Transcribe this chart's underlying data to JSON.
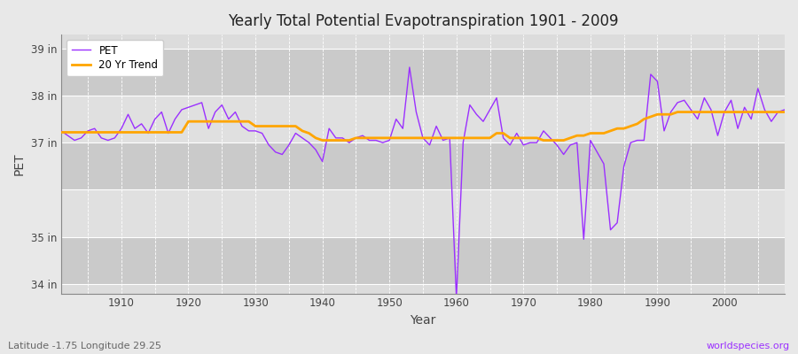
{
  "title": "Yearly Total Potential Evapotranspiration 1901 - 2009",
  "xlabel": "Year",
  "ylabel": "PET",
  "pet_color": "#9B30FF",
  "trend_color": "#FFA500",
  "background_color": "#E8E8E8",
  "plot_bg_color": "#DCDCDC",
  "grid_color": "#BBBBBB",
  "subtitle": "Latitude -1.75 Longitude 29.25",
  "watermark": "worldspecies.org",
  "ylim": [
    33.8,
    39.3
  ],
  "xlim": [
    1901,
    2009
  ],
  "years": [
    1901,
    1902,
    1903,
    1904,
    1905,
    1906,
    1907,
    1908,
    1909,
    1910,
    1911,
    1912,
    1913,
    1914,
    1915,
    1916,
    1917,
    1918,
    1919,
    1920,
    1921,
    1922,
    1923,
    1924,
    1925,
    1926,
    1927,
    1928,
    1929,
    1930,
    1931,
    1932,
    1933,
    1934,
    1935,
    1936,
    1937,
    1938,
    1939,
    1940,
    1941,
    1942,
    1943,
    1944,
    1945,
    1946,
    1947,
    1948,
    1949,
    1950,
    1951,
    1952,
    1953,
    1954,
    1955,
    1956,
    1957,
    1958,
    1959,
    1960,
    1961,
    1962,
    1963,
    1964,
    1965,
    1966,
    1967,
    1968,
    1969,
    1970,
    1971,
    1972,
    1973,
    1974,
    1975,
    1976,
    1977,
    1978,
    1979,
    1980,
    1981,
    1982,
    1983,
    1984,
    1985,
    1986,
    1987,
    1988,
    1989,
    1990,
    1991,
    1992,
    1993,
    1994,
    1995,
    1996,
    1997,
    1998,
    1999,
    2000,
    2001,
    2002,
    2003,
    2004,
    2005,
    2006,
    2007,
    2008,
    2009
  ],
  "pet_values": [
    37.25,
    37.15,
    37.05,
    37.1,
    37.25,
    37.3,
    37.1,
    37.05,
    37.1,
    37.3,
    37.6,
    37.3,
    37.4,
    37.2,
    37.5,
    37.65,
    37.2,
    37.5,
    37.7,
    37.75,
    37.8,
    37.85,
    37.3,
    37.65,
    37.8,
    37.5,
    37.65,
    37.35,
    37.25,
    37.25,
    37.2,
    36.95,
    36.8,
    36.75,
    36.95,
    37.2,
    37.1,
    37.0,
    36.85,
    36.6,
    37.3,
    37.1,
    37.1,
    37.0,
    37.1,
    37.15,
    37.05,
    37.05,
    37.0,
    37.05,
    37.5,
    37.3,
    38.6,
    37.65,
    37.1,
    36.95,
    37.35,
    37.05,
    37.1,
    33.7,
    37.0,
    37.8,
    37.6,
    37.45,
    37.7,
    37.95,
    37.1,
    36.95,
    37.2,
    36.95,
    37.0,
    37.0,
    37.25,
    37.1,
    36.95,
    36.75,
    36.95,
    37.0,
    34.95,
    37.05,
    36.8,
    36.55,
    35.15,
    35.3,
    36.5,
    37.0,
    37.05,
    37.05,
    38.45,
    38.3,
    37.25,
    37.65,
    37.85,
    37.9,
    37.7,
    37.5,
    37.95,
    37.7,
    37.15,
    37.65,
    37.9,
    37.3,
    37.75,
    37.5,
    38.15,
    37.7,
    37.45,
    37.65,
    37.7
  ],
  "trend_values": [
    37.22,
    37.22,
    37.22,
    37.22,
    37.22,
    37.22,
    37.22,
    37.22,
    37.22,
    37.22,
    37.22,
    37.22,
    37.22,
    37.22,
    37.22,
    37.22,
    37.22,
    37.22,
    37.22,
    37.45,
    37.45,
    37.45,
    37.45,
    37.45,
    37.45,
    37.45,
    37.45,
    37.45,
    37.45,
    37.35,
    37.35,
    37.35,
    37.35,
    37.35,
    37.35,
    37.35,
    37.25,
    37.2,
    37.1,
    37.05,
    37.05,
    37.05,
    37.05,
    37.05,
    37.1,
    37.1,
    37.1,
    37.1,
    37.1,
    37.1,
    37.1,
    37.1,
    37.1,
    37.1,
    37.1,
    37.1,
    37.1,
    37.1,
    37.1,
    37.1,
    37.1,
    37.1,
    37.1,
    37.1,
    37.1,
    37.2,
    37.2,
    37.1,
    37.1,
    37.1,
    37.1,
    37.1,
    37.05,
    37.05,
    37.05,
    37.05,
    37.1,
    37.15,
    37.15,
    37.2,
    37.2,
    37.2,
    37.25,
    37.3,
    37.3,
    37.35,
    37.4,
    37.5,
    37.55,
    37.6,
    37.6,
    37.6,
    37.65,
    37.65,
    37.65,
    37.65,
    37.65,
    37.65,
    37.65,
    37.65,
    37.65,
    37.65,
    37.65,
    37.65,
    37.65,
    37.65,
    37.65,
    37.65,
    37.65
  ],
  "band_ranges": [
    [
      34.0,
      35.0
    ],
    [
      36.0,
      37.0
    ],
    [
      38.0,
      39.0
    ]
  ],
  "band_color_light": "#E0E0E0",
  "band_color_dark": "#CACACA"
}
